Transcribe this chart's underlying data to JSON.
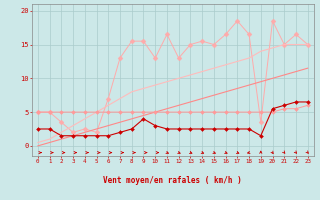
{
  "background_color": "#cce8e8",
  "grid_color": "#aacccc",
  "xlabel": "Vent moyen/en rafales ( km/h )",
  "xlim": [
    -0.5,
    23.5
  ],
  "ylim": [
    -1.5,
    21
  ],
  "yticks": [
    0,
    5,
    10,
    15,
    20
  ],
  "xticks": [
    0,
    1,
    2,
    3,
    4,
    5,
    6,
    7,
    8,
    9,
    10,
    11,
    12,
    13,
    14,
    15,
    16,
    17,
    18,
    19,
    20,
    21,
    22,
    23
  ],
  "x": [
    0,
    1,
    2,
    3,
    4,
    5,
    6,
    7,
    8,
    9,
    10,
    11,
    12,
    13,
    14,
    15,
    16,
    17,
    18,
    19,
    20,
    21,
    22,
    23
  ],
  "line_jagged_light_y": [
    5.0,
    5.0,
    3.5,
    2.0,
    2.5,
    2.0,
    7.0,
    13.0,
    15.5,
    15.5,
    13.0,
    16.5,
    13.0,
    15.0,
    15.5,
    15.0,
    16.5,
    18.5,
    16.5,
    3.5,
    18.5,
    15.0,
    16.5,
    15.0
  ],
  "line_jagged_light_color": "#ffaaaa",
  "line_jagged_light_marker": "D",
  "line_jagged_light_markersize": 2.5,
  "line_diag_upper_y": [
    0.5,
    1.0,
    2.0,
    3.0,
    4.0,
    5.0,
    6.0,
    7.0,
    8.0,
    8.5,
    9.0,
    9.5,
    10.0,
    10.5,
    11.0,
    11.5,
    12.0,
    12.5,
    13.0,
    14.0,
    14.5,
    15.0,
    15.0,
    15.0
  ],
  "line_diag_upper_color": "#ffbbbb",
  "line_diag_upper_marker": null,
  "line_diag_lower_y": [
    0.0,
    0.5,
    1.0,
    1.5,
    2.0,
    2.5,
    3.0,
    3.5,
    4.0,
    4.5,
    5.0,
    5.5,
    6.0,
    6.5,
    7.0,
    7.5,
    8.0,
    8.5,
    9.0,
    9.5,
    10.0,
    10.5,
    11.0,
    11.5
  ],
  "line_diag_lower_color": "#ff8888",
  "line_diag_lower_marker": null,
  "line_flat_pink_y": [
    5.0,
    5.0,
    5.0,
    5.0,
    5.0,
    5.0,
    5.0,
    5.0,
    5.0,
    5.0,
    5.0,
    5.0,
    5.0,
    5.0,
    5.0,
    5.0,
    5.0,
    5.0,
    5.0,
    5.0,
    5.0,
    5.5,
    5.5,
    6.0
  ],
  "line_flat_pink_color": "#ff9999",
  "line_flat_pink_marker": "D",
  "line_flat_pink_markersize": 2.0,
  "line_dark_red_y": [
    2.5,
    2.5,
    1.5,
    1.5,
    1.5,
    1.5,
    1.5,
    2.0,
    2.5,
    4.0,
    3.0,
    2.5,
    2.5,
    2.5,
    2.5,
    2.5,
    2.5,
    2.5,
    2.5,
    1.5,
    5.5,
    6.0,
    6.5,
    6.5
  ],
  "line_dark_red_color": "#cc0000",
  "line_dark_red_marker": "D",
  "line_dark_red_markersize": 2.0,
  "xlabel_color": "#cc0000",
  "axis_color": "#888888",
  "tick_color": "#cc0000",
  "arrow_color": "#cc0000",
  "ylabel_color": "#cc0000"
}
